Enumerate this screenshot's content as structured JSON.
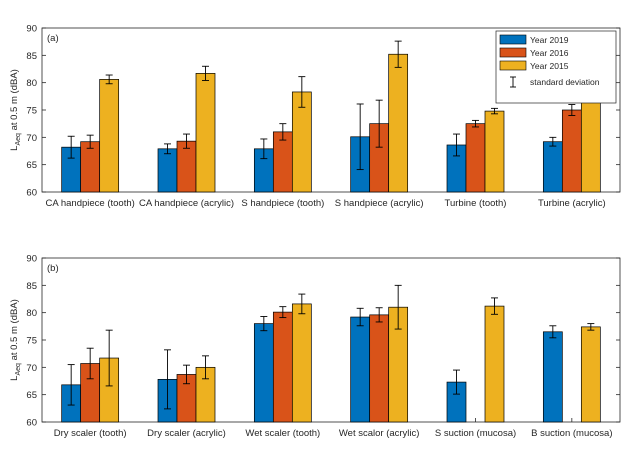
{
  "legend": {
    "placement": "top-right",
    "std_label": "standard deviation"
  },
  "colors": [
    "#0072BD",
    "#D95319",
    "#EDB120"
  ],
  "chart_data": [
    {
      "type": "bar",
      "panel_label": "(a)",
      "ylabel_main": "L",
      "ylabel_sub": "Aeq",
      "ylabel_rest": " at 0.5 m (dBA)",
      "ylim": [
        60,
        90
      ],
      "yticks": [
        60,
        65,
        70,
        75,
        80,
        85,
        90
      ],
      "categories": [
        "CA handpiece (tooth)",
        "CA handpiece (acrylic)",
        "S handpiece (tooth)",
        "S handpiece (acrylic)",
        "Turbine (tooth)",
        "Turbine (acrylic)"
      ],
      "series": [
        {
          "name": "Year 2019",
          "values": [
            68.2,
            67.9,
            67.9,
            70.1,
            68.6,
            69.2
          ],
          "std": [
            2.0,
            0.9,
            1.8,
            6.0,
            2.0,
            0.8
          ]
        },
        {
          "name": "Year 2016",
          "values": [
            69.2,
            69.3,
            71.0,
            72.5,
            72.5,
            75.0
          ],
          "std": [
            1.2,
            1.3,
            1.5,
            4.3,
            0.6,
            1.0
          ]
        },
        {
          "name": "Year 2015",
          "values": [
            80.6,
            81.7,
            78.3,
            85.2,
            74.8,
            78.1
          ],
          "std": [
            0.8,
            1.3,
            2.8,
            2.4,
            0.5,
            1.5
          ]
        }
      ]
    },
    {
      "type": "bar",
      "panel_label": "(b)",
      "ylabel_main": "L",
      "ylabel_sub": "Aeq",
      "ylabel_rest": " at 0.5 m (dBA)",
      "ylim": [
        60,
        90
      ],
      "yticks": [
        60,
        65,
        70,
        75,
        80,
        85,
        90
      ],
      "categories": [
        "Dry scaler (tooth)",
        "Dry scaler (acrylic)",
        "Wet scaler (tooth)",
        "Wet scalor (acrylic)",
        "S suction (mucosa)",
        "B suction (mucosa)"
      ],
      "series": [
        {
          "name": "Year 2019",
          "values": [
            66.8,
            67.8,
            78.0,
            79.2,
            67.3,
            76.5
          ],
          "std": [
            3.7,
            5.4,
            1.3,
            1.6,
            2.2,
            1.1
          ]
        },
        {
          "name": "Year 2016",
          "values": [
            70.7,
            68.7,
            80.1,
            79.6,
            null,
            null
          ],
          "std": [
            2.8,
            1.7,
            1.0,
            1.3,
            null,
            null
          ]
        },
        {
          "name": "Year 2015",
          "values": [
            71.7,
            70.0,
            81.6,
            81.0,
            81.2,
            77.4
          ],
          "std": [
            5.1,
            2.1,
            1.8,
            4.0,
            1.5,
            0.6
          ]
        }
      ]
    }
  ]
}
